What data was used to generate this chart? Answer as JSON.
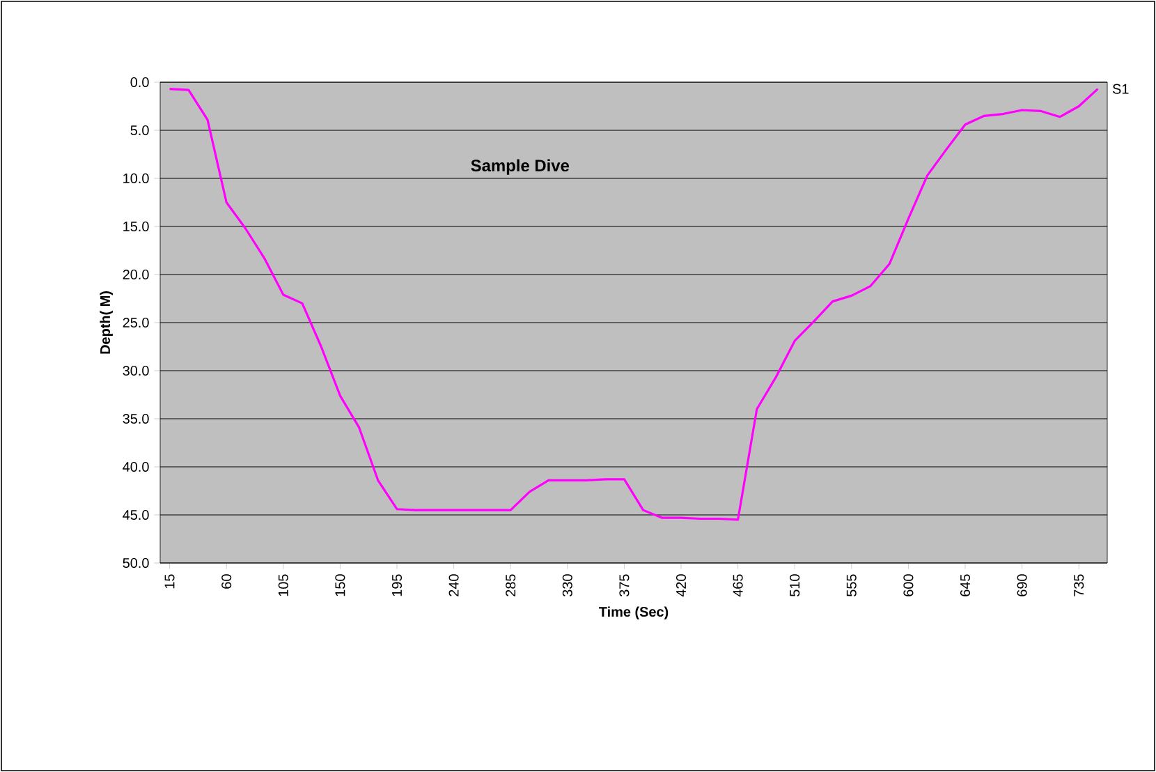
{
  "chart_data": {
    "type": "line",
    "title": "Sample Dive",
    "xlabel": "Time (Sec)",
    "ylabel": "Depth( M)",
    "categories": [
      "15",
      null,
      null,
      "60",
      null,
      null,
      "105",
      null,
      null,
      "150",
      null,
      null,
      "195",
      null,
      null,
      "240",
      null,
      null,
      "285",
      null,
      null,
      "330",
      null,
      null,
      "375",
      null,
      null,
      "420",
      null,
      null,
      "465",
      null,
      null,
      "510",
      null,
      null,
      "555",
      null,
      null,
      "600",
      null,
      null,
      "645",
      null,
      null,
      "690",
      null,
      null,
      "735",
      null
    ],
    "series": [
      {
        "name": "S1",
        "color": "#ff00ff",
        "values": [
          0.7,
          0.8,
          3.9,
          12.5,
          15.2,
          18.3,
          22.1,
          23.0,
          27.5,
          32.6,
          35.9,
          41.4,
          44.4,
          44.5,
          44.5,
          44.5,
          44.5,
          44.5,
          44.5,
          42.6,
          41.4,
          41.4,
          41.4,
          41.3,
          41.3,
          44.5,
          45.3,
          45.3,
          45.4,
          45.4,
          45.5,
          34.0,
          30.7,
          26.9,
          24.9,
          22.8,
          22.2,
          21.2,
          18.9,
          14.2,
          9.7,
          7.0,
          4.4,
          3.5,
          3.3,
          2.9,
          3.0,
          3.6,
          2.5,
          0.7
        ]
      }
    ],
    "ylim": [
      50,
      0
    ],
    "yticks": [
      {
        "value": 0,
        "label": "0.0"
      },
      {
        "value": 5,
        "label": "5.0"
      },
      {
        "value": 10,
        "label": "10.0"
      },
      {
        "value": 15,
        "label": "15.0"
      },
      {
        "value": 20,
        "label": "20.0"
      },
      {
        "value": 25,
        "label": "25.0"
      },
      {
        "value": 30,
        "label": "30.0"
      },
      {
        "value": 35,
        "label": "35.0"
      },
      {
        "value": 40,
        "label": "40.0"
      },
      {
        "value": 45,
        "label": "45.0"
      },
      {
        "value": 50,
        "label": "50.0"
      }
    ],
    "grid": "y",
    "legend": false,
    "marker": "none",
    "line_style": "solid"
  }
}
